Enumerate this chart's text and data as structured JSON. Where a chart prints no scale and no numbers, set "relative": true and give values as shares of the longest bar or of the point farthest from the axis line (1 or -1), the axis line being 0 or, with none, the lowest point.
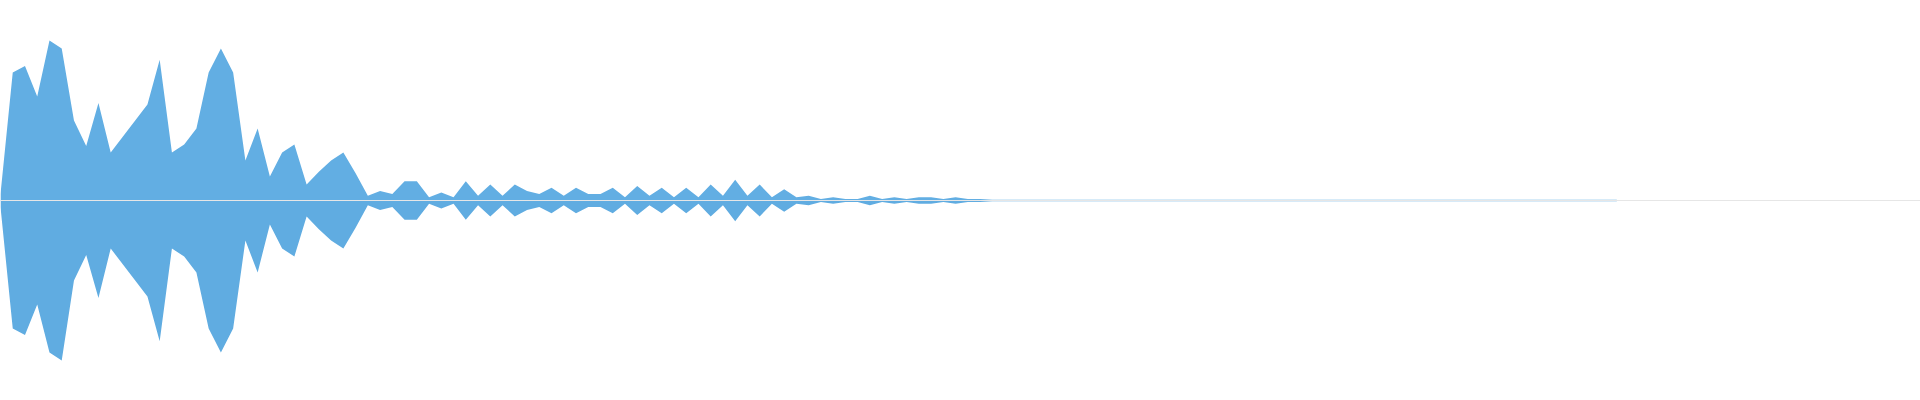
{
  "chart_data": {
    "type": "area",
    "relative": true,
    "categories": [
      null,
      null,
      null,
      null,
      null,
      null,
      null,
      null,
      null,
      null,
      null,
      null,
      null,
      null,
      null,
      null,
      null,
      null,
      null,
      null,
      null,
      null,
      null,
      null,
      null,
      null,
      null,
      null,
      null,
      null,
      null,
      null,
      null,
      null,
      null,
      null,
      null,
      null,
      null,
      null,
      null,
      null,
      null,
      null,
      null,
      null,
      null,
      null,
      null,
      null,
      null,
      null,
      null,
      null,
      null,
      null,
      null,
      null,
      null,
      null,
      null,
      null,
      null,
      null,
      null,
      null,
      null,
      null,
      null,
      null,
      null,
      null,
      null,
      null,
      null,
      null,
      null,
      null,
      null,
      null,
      null,
      null,
      null,
      null,
      null,
      null,
      null,
      null,
      null,
      null,
      null,
      null,
      null,
      null,
      null,
      null,
      null,
      null,
      null,
      null,
      null,
      null,
      null,
      null,
      null,
      null,
      null,
      null,
      null,
      null,
      null,
      null,
      null,
      null,
      null,
      null,
      null,
      null,
      null,
      null,
      null,
      null,
      null,
      null,
      null,
      null,
      null,
      null,
      null,
      null,
      null,
      null,
      null
    ],
    "series": [
      {
        "color": "#62aee3",
        "values": [
          0.04,
          0.8,
          0.84,
          0.65,
          1.0,
          0.95,
          0.5,
          0.34,
          0.61,
          0.3,
          0.4,
          0.5,
          0.6,
          0.88,
          0.3,
          0.35,
          0.45,
          0.8,
          0.95,
          0.8,
          0.25,
          0.45,
          0.15,
          0.3,
          0.35,
          0.1,
          0.18,
          0.25,
          0.3,
          0.17,
          0.03,
          0.06,
          0.04,
          0.12,
          0.12,
          0.02,
          0.05,
          0.02,
          0.12,
          0.03,
          0.1,
          0.03,
          0.1,
          0.06,
          0.04,
          0.08,
          0.03,
          0.08,
          0.04,
          0.04,
          0.08,
          0.02,
          0.09,
          0.03,
          0.08,
          0.02,
          0.08,
          0.02,
          0.1,
          0.03,
          0.13,
          0.03,
          0.1,
          0.02,
          0.07,
          0.02,
          0.03,
          0.01,
          0.02,
          0.01,
          0.01,
          0.03,
          0.01,
          0.02,
          0.01,
          0.02,
          0.02,
          0.01,
          0.02,
          0.01,
          0.01,
          0.005,
          0.005,
          0.005,
          0.005,
          0.005,
          0.005,
          0.005,
          0.005,
          0.005,
          0.005,
          0.005,
          0.005,
          0.005,
          0.005,
          0.005,
          0.005,
          0.005,
          0.005,
          0.005,
          0.005,
          0.005,
          0.005,
          0.005,
          0.005,
          0.005,
          0.005,
          0.005,
          0.005,
          0.005,
          0.005,
          0.005,
          0.005,
          0.005,
          0.005,
          0.005,
          0.005,
          0.005,
          0.005,
          0.005,
          0.005,
          0.005,
          0.005,
          0.005,
          0.005,
          0.005,
          0.005,
          0.005,
          0.005,
          0.005,
          0.005,
          0.005,
          0.005
        ]
      },
      {
        "color": "#60ace1",
        "values": [
          -0.04,
          -0.8,
          -0.84,
          -0.65,
          -0.95,
          -1.0,
          -0.5,
          -0.34,
          -0.61,
          -0.3,
          -0.4,
          -0.5,
          -0.6,
          -0.88,
          -0.3,
          -0.35,
          -0.45,
          -0.8,
          -0.95,
          -0.8,
          -0.25,
          -0.45,
          -0.15,
          -0.3,
          -0.35,
          -0.1,
          -0.18,
          -0.25,
          -0.3,
          -0.17,
          -0.03,
          -0.06,
          -0.04,
          -0.12,
          -0.12,
          -0.02,
          -0.05,
          -0.02,
          -0.12,
          -0.03,
          -0.1,
          -0.03,
          -0.1,
          -0.06,
          -0.04,
          -0.08,
          -0.03,
          -0.08,
          -0.04,
          -0.04,
          -0.08,
          -0.02,
          -0.09,
          -0.03,
          -0.08,
          -0.02,
          -0.08,
          -0.02,
          -0.1,
          -0.03,
          -0.13,
          -0.03,
          -0.1,
          -0.02,
          -0.07,
          -0.02,
          -0.03,
          -0.01,
          -0.02,
          -0.01,
          -0.01,
          -0.03,
          -0.01,
          -0.02,
          -0.01,
          -0.02,
          -0.02,
          -0.01,
          -0.02,
          -0.01,
          -0.01,
          -0.005,
          -0.005,
          -0.005,
          -0.005,
          -0.005,
          -0.005,
          -0.005,
          -0.005,
          -0.005,
          -0.005,
          -0.005,
          -0.005,
          -0.005,
          -0.005,
          -0.005,
          -0.005,
          -0.005,
          -0.005,
          -0.005,
          -0.005,
          -0.005,
          -0.005,
          -0.005,
          -0.005,
          -0.005,
          -0.005,
          -0.005,
          -0.005,
          -0.005,
          -0.005,
          -0.005,
          -0.005,
          -0.005,
          -0.005,
          -0.005,
          -0.005,
          -0.005,
          -0.005,
          -0.005,
          -0.005,
          -0.005,
          -0.005,
          -0.005,
          -0.005,
          -0.005,
          -0.005,
          -0.005,
          -0.005,
          -0.005,
          -0.005,
          -0.005,
          -0.005
        ]
      }
    ]
  }
}
